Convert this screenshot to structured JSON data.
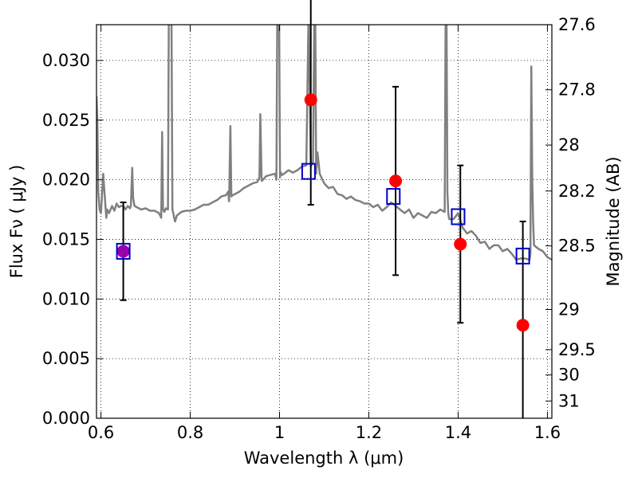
{
  "chart_data": {
    "type": "scatter",
    "xlabel": "Wavelength  λ (μm)",
    "ylabel": "Flux  Fν  ( μJy )",
    "ylabel_right": "Magnitude (AB)",
    "xlim": [
      0.59,
      1.61
    ],
    "ylim": [
      0.0,
      0.033
    ],
    "grid": true,
    "x_ticks": [
      0.6,
      0.8,
      1.0,
      1.2,
      1.4,
      1.6
    ],
    "x_tick_labels": [
      "0.6",
      "0.8",
      "1",
      "1.2",
      "1.4",
      "1.6"
    ],
    "y_ticks": [
      0.0,
      0.005,
      0.01,
      0.015,
      0.02,
      0.025,
      0.03
    ],
    "y_tick_labels": [
      "0.000",
      "0.005",
      "0.010",
      "0.015",
      "0.020",
      "0.025",
      "0.030"
    ],
    "right_ticks": [
      {
        "mag": 27.6,
        "label": "27.6"
      },
      {
        "mag": 27.8,
        "label": "27.8"
      },
      {
        "mag": 28.0,
        "label": "28"
      },
      {
        "mag": 28.2,
        "label": "28.2"
      },
      {
        "mag": 28.5,
        "label": "28.5"
      },
      {
        "mag": 29.0,
        "label": "29"
      },
      {
        "mag": 29.5,
        "label": "29.5"
      },
      {
        "mag": 30.0,
        "label": "30"
      },
      {
        "mag": 31.0,
        "label": "31"
      }
    ],
    "model_spectrum": {
      "color": "#808080",
      "x": [
        0.59,
        0.592,
        0.594,
        0.597,
        0.6,
        0.605,
        0.61,
        0.612,
        0.614,
        0.618,
        0.625,
        0.63,
        0.635,
        0.64,
        0.645,
        0.65,
        0.655,
        0.66,
        0.665,
        0.667,
        0.67,
        0.672,
        0.675,
        0.68,
        0.69,
        0.7,
        0.71,
        0.72,
        0.73,
        0.735,
        0.737,
        0.739,
        0.742,
        0.745,
        0.75,
        0.752,
        0.754,
        0.756,
        0.758,
        0.76,
        0.762,
        0.764,
        0.766,
        0.77,
        0.78,
        0.79,
        0.8,
        0.81,
        0.82,
        0.83,
        0.84,
        0.85,
        0.86,
        0.87,
        0.88,
        0.885,
        0.887,
        0.89,
        0.892,
        0.895,
        0.9,
        0.91,
        0.92,
        0.93,
        0.94,
        0.95,
        0.955,
        0.957,
        0.96,
        0.963,
        0.97,
        0.98,
        0.99,
        0.993,
        0.995,
        0.997,
        0.999,
        1.001,
        1.003,
        1.006,
        1.01,
        1.02,
        1.03,
        1.04,
        1.05,
        1.06,
        1.065,
        1.07,
        1.075,
        1.078,
        1.08,
        1.082,
        1.085,
        1.09,
        1.1,
        1.11,
        1.12,
        1.13,
        1.14,
        1.15,
        1.16,
        1.17,
        1.18,
        1.19,
        1.2,
        1.21,
        1.22,
        1.23,
        1.24,
        1.25,
        1.26,
        1.27,
        1.28,
        1.29,
        1.3,
        1.31,
        1.32,
        1.33,
        1.34,
        1.35,
        1.36,
        1.37,
        1.372,
        1.374,
        1.376,
        1.378,
        1.38,
        1.39,
        1.4,
        1.41,
        1.42,
        1.43,
        1.44,
        1.45,
        1.46,
        1.47,
        1.48,
        1.49,
        1.5,
        1.51,
        1.52,
        1.53,
        1.54,
        1.55,
        1.56,
        1.562,
        1.564,
        1.566,
        1.568,
        1.57,
        1.58,
        1.59,
        1.6,
        1.61
      ],
      "y": [
        0.027,
        0.025,
        0.019,
        0.0175,
        0.0172,
        0.0205,
        0.0178,
        0.0168,
        0.0175,
        0.0172,
        0.0178,
        0.0174,
        0.018,
        0.0177,
        0.0178,
        0.0178,
        0.0175,
        0.0178,
        0.0176,
        0.0178,
        0.021,
        0.0185,
        0.0178,
        0.0177,
        0.0175,
        0.0176,
        0.0174,
        0.0174,
        0.0172,
        0.0168,
        0.024,
        0.0175,
        0.0173,
        0.0176,
        0.0175,
        0.034,
        0.034,
        0.034,
        0.034,
        0.0175,
        0.0172,
        0.0168,
        0.0165,
        0.017,
        0.0173,
        0.0174,
        0.0174,
        0.0175,
        0.0177,
        0.0179,
        0.0179,
        0.0181,
        0.0183,
        0.0186,
        0.0187,
        0.019,
        0.0182,
        0.0245,
        0.0186,
        0.0187,
        0.0188,
        0.019,
        0.0193,
        0.0195,
        0.0197,
        0.0198,
        0.0202,
        0.0255,
        0.0199,
        0.02,
        0.0203,
        0.0204,
        0.0205,
        0.02,
        0.034,
        0.034,
        0.034,
        0.0202,
        0.0206,
        0.0204,
        0.0205,
        0.0208,
        0.0206,
        0.0208,
        0.0211,
        0.0212,
        0.034,
        0.0211,
        0.0215,
        0.034,
        0.034,
        0.0205,
        0.0223,
        0.0205,
        0.0197,
        0.0193,
        0.0194,
        0.0188,
        0.0187,
        0.0184,
        0.0186,
        0.0183,
        0.0182,
        0.018,
        0.018,
        0.0177,
        0.0179,
        0.0174,
        0.0177,
        0.0181,
        0.0178,
        0.0175,
        0.0172,
        0.0175,
        0.0168,
        0.0172,
        0.017,
        0.0168,
        0.0173,
        0.0172,
        0.0175,
        0.0173,
        0.034,
        0.034,
        0.019,
        0.0172,
        0.0167,
        0.0167,
        0.0172,
        0.016,
        0.0155,
        0.0157,
        0.0153,
        0.0147,
        0.0148,
        0.0142,
        0.0145,
        0.0145,
        0.014,
        0.0142,
        0.0138,
        0.0133,
        0.0134,
        0.0134,
        0.0133,
        0.0138,
        0.0295,
        0.02,
        0.0165,
        0.0145,
        0.0142,
        0.014,
        0.0135,
        0.0133
      ]
    },
    "observed": {
      "color": "#ff0000",
      "points": [
        {
          "x": 0.65,
          "y": 0.014,
          "yerr": 0.0041
        },
        {
          "x": 1.07,
          "y": 0.0267,
          "yerr": 0.0088
        },
        {
          "x": 1.26,
          "y": 0.0199,
          "yerr": 0.0079
        },
        {
          "x": 1.405,
          "y": 0.0146,
          "yerr": 0.0066
        },
        {
          "x": 1.545,
          "y": 0.0078,
          "yerr": 0.0087
        }
      ]
    },
    "synthetic": {
      "color": "#0000cc",
      "points": [
        {
          "x": 0.65,
          "y": 0.014
        },
        {
          "x": 1.065,
          "y": 0.0207
        },
        {
          "x": 1.255,
          "y": 0.0186
        },
        {
          "x": 1.4,
          "y": 0.0169
        },
        {
          "x": 1.545,
          "y": 0.0136
        }
      ]
    },
    "overlap_color": "#9900aa"
  }
}
